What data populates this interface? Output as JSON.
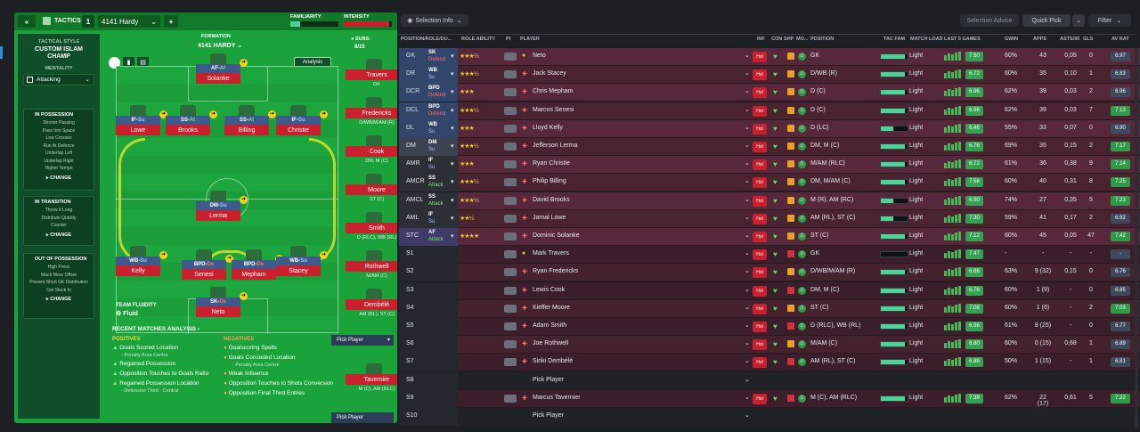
{
  "left": {
    "collapse": "«",
    "tactics_label": "TACTICS",
    "slot": "1",
    "formation_select": "4141 Hardy",
    "add": "+",
    "familiarity": "FAMILIARITY",
    "intensity": "INTENSITY",
    "formation_label": "FORMATION",
    "formation_value": "4141 HARDY",
    "subs_label": "SUBS:",
    "subs_value": "8/15",
    "analysis": "Analysis",
    "style_label": "TACTICAL STYLE",
    "style_value": "CUSTOM ISLAM CHAMP",
    "mentality_label": "MENTALITY",
    "mentality_value": "Attacking",
    "in_possession": {
      "title": "IN POSSESSION",
      "items": [
        "Shorter Passing",
        "Pass Into Space",
        "Low Crosses",
        "Run At Defence",
        "Underlap Left",
        "Underlap Right",
        "Higher Tempo"
      ],
      "change": "CHANGE"
    },
    "in_transition": {
      "title": "IN TRANSITION",
      "items": [
        "Throw It Long",
        "Distribute Quickly",
        "Counter"
      ],
      "change": "CHANGE"
    },
    "out_of_possession": {
      "title": "OUT OF POSSESSION",
      "items": [
        "High Press",
        "Much More Offset",
        "Prevent Short GK Distribution",
        "Get Stuck In"
      ],
      "change": "CHANGE"
    },
    "fluidity_label": "TEAM FLUIDITY",
    "fluidity_value": "Fluid",
    "players": [
      {
        "role": "AF",
        "duty": "At",
        "name": "Solanke"
      },
      {
        "role": "IF",
        "duty": "Su",
        "name": "Lowe"
      },
      {
        "role": "SS",
        "duty": "At",
        "name": "Brooks"
      },
      {
        "role": "SS",
        "duty": "At",
        "name": "Billing"
      },
      {
        "role": "IF",
        "duty": "Su",
        "name": "Christie"
      },
      {
        "role": "DM",
        "duty": "Su",
        "name": "Lerma"
      },
      {
        "role": "WB",
        "duty": "Su",
        "name": "Kelly"
      },
      {
        "role": "BPD",
        "duty": "De",
        "name": "Senesi"
      },
      {
        "role": "BPD",
        "duty": "De",
        "name": "Mepham"
      },
      {
        "role": "WB",
        "duty": "Su",
        "name": "Stacey"
      },
      {
        "role": "SK",
        "duty": "De",
        "name": "Neto"
      }
    ],
    "subs": [
      {
        "name": "Travers",
        "pos": "GK"
      },
      {
        "name": "Fredericks",
        "pos": "D/WB/M/AM (R)"
      },
      {
        "name": "Cook",
        "pos": "DM, M (C)"
      },
      {
        "name": "Moore",
        "pos": "ST (C)"
      },
      {
        "name": "Smith",
        "pos": "D (RLC), WB (RL)"
      },
      {
        "name": "Rothwell",
        "pos": "M/AM (C)"
      },
      {
        "name": "Dembélé",
        "pos": "AM (RL), ST (C)"
      },
      {
        "name": "Tavernier",
        "pos": "M (C), AM (RLC)"
      }
    ],
    "pick_player": "Pick Player",
    "pick_player_bottom": "Pick Player",
    "recent": "RECENT MATCHES ANALYSIS",
    "positives_label": "POSITIVES",
    "positives": [
      {
        "t": "Goals Scored Location",
        "s": "- Penalty Area Centre"
      },
      {
        "t": "Regained Possession",
        "s": ""
      },
      {
        "t": "Opposition Touches to Goals Ratio",
        "s": ""
      },
      {
        "t": "Regained Possession Location",
        "s": "- Defensive Third - Central"
      }
    ],
    "negatives_label": "NEGATIVES",
    "negatives": [
      {
        "t": "Goalscoring Spells",
        "s": ""
      },
      {
        "t": "Goals Conceded Location",
        "s": "- Penalty Area Centre"
      },
      {
        "t": "Weak Influence",
        "s": ""
      },
      {
        "t": "Opposition Touches to Shots Conversion",
        "s": ""
      },
      {
        "t": "Opposition Final Third Entries",
        "s": ""
      }
    ]
  },
  "right": {
    "selection_info": "Selection Info",
    "selection_advice": "Selection Advice",
    "quick_pick": "Quick Pick",
    "filter": "Filter",
    "headers": [
      "POSITION/ROLE/DU...",
      "ROLE ABILITY",
      "PI",
      "PLAYER",
      "INF",
      "CON",
      "SHP",
      "MO...",
      "POSITION",
      "TAC FAM",
      "MATCH LOAD",
      "LAST 5 GAMES",
      "GWIN",
      "APPS",
      "ASTS/90",
      "GLS",
      "AV RAT"
    ],
    "rows": [
      {
        "pos": "GK",
        "role": "SK",
        "duty": "Defend",
        "stars": "★★★½",
        "name": "Neto",
        "position": "GK",
        "load": "Light",
        "gwin": "60%",
        "apps": "43",
        "asts": "0,05",
        "gls": "0",
        "av": "6.97",
        "rat": "7.50"
      },
      {
        "pos": "DR",
        "role": "WB",
        "duty": "Su",
        "stars": "★★★½",
        "name": "Jack Stacey",
        "position": "D/WB (R)",
        "load": "Light",
        "gwin": "60%",
        "apps": "35",
        "asts": "0,10",
        "gls": "1",
        "av": "6.83",
        "rat": "6.72"
      },
      {
        "pos": "DCR",
        "role": "BPD",
        "duty": "Defend",
        "stars": "★★★",
        "name": "Chris Mepham",
        "position": "D (C)",
        "load": "Light",
        "gwin": "62%",
        "apps": "39",
        "asts": "0,03",
        "gls": "2",
        "av": "6.96",
        "rat": "6.96"
      },
      {
        "pos": "DCL",
        "role": "BPD",
        "duty": "Defend",
        "stars": "★★★½",
        "name": "Marcos Senesi",
        "position": "D (C)",
        "load": "Light",
        "gwin": "62%",
        "apps": "39",
        "asts": "0,03",
        "gls": "7",
        "av": "7.13",
        "rat": "6.96"
      },
      {
        "pos": "DL",
        "role": "WB",
        "duty": "Su",
        "stars": "★★★",
        "name": "Lloyd Kelly",
        "position": "D (LC)",
        "load": "Light",
        "gwin": "55%",
        "apps": "33",
        "asts": "0,07",
        "gls": "0",
        "av": "6.90",
        "rat": "6.46"
      },
      {
        "pos": "DM",
        "role": "DM",
        "duty": "Su",
        "stars": "★★★½",
        "name": "Jefferson Lerma",
        "position": "DM, M (C)",
        "load": "Light",
        "gwin": "69%",
        "apps": "35",
        "asts": "0,15",
        "gls": "2",
        "av": "7.17",
        "rat": "6.76"
      },
      {
        "pos": "AMR",
        "role": "IF",
        "duty": "Su",
        "stars": "★★★",
        "name": "Ryan Christie",
        "position": "M/AM (RLC)",
        "load": "Light",
        "gwin": "61%",
        "apps": "36",
        "asts": "0,38",
        "gls": "9",
        "av": "7.14",
        "rat": "6.72"
      },
      {
        "pos": "AMCR",
        "role": "SS",
        "duty": "Attack",
        "stars": "★★★½",
        "name": "Philip Billing",
        "position": "DM, M/AM (C)",
        "load": "Light",
        "gwin": "60%",
        "apps": "40",
        "asts": "0,31",
        "gls": "8",
        "av": "7.25",
        "rat": "7.58"
      },
      {
        "pos": "AMCL",
        "role": "SS",
        "duty": "Attack",
        "stars": "★★★½",
        "name": "David Brooks",
        "position": "M (R), AM (RC)",
        "load": "Light",
        "gwin": "74%",
        "apps": "27",
        "asts": "0,35",
        "gls": "5",
        "av": "7.23",
        "rat": "6.90"
      },
      {
        "pos": "AML",
        "role": "IF",
        "duty": "Su",
        "stars": "★★½",
        "name": "Jamal Lowe",
        "position": "AM (RL), ST (C)",
        "load": "Light",
        "gwin": "59%",
        "apps": "41",
        "asts": "0,17",
        "gls": "2",
        "av": "6.92",
        "rat": "7.30"
      },
      {
        "pos": "STC",
        "role": "AF",
        "duty": "Attack",
        "stars": "★★★★",
        "name": "Dominic Solanke",
        "position": "ST (C)",
        "load": "Light",
        "gwin": "60%",
        "apps": "45",
        "asts": "0,05",
        "gls": "47",
        "av": "7.42",
        "rat": "7.12"
      },
      {
        "pos": "S1",
        "role": "",
        "duty": "",
        "stars": "",
        "name": "Mark Travers",
        "position": "GK",
        "load": "Light",
        "gwin": "-",
        "apps": "-",
        "asts": "-",
        "gls": "-",
        "av": "-",
        "rat": "7.47"
      },
      {
        "pos": "S2",
        "role": "",
        "duty": "",
        "stars": "",
        "name": "Ryan Fredericks",
        "position": "D/WB/M/AM (R)",
        "load": "Light",
        "gwin": "63%",
        "apps": "9 (32)",
        "asts": "0,15",
        "gls": "0",
        "av": "6.76",
        "rat": "6.88"
      },
      {
        "pos": "S3",
        "role": "",
        "duty": "",
        "stars": "",
        "name": "Lewis Cook",
        "position": "DM, M (C)",
        "load": "Light",
        "gwin": "60%",
        "apps": "1 (9)",
        "asts": "-",
        "gls": "0",
        "av": "6.85",
        "rat": "6.76"
      },
      {
        "pos": "S4",
        "role": "",
        "duty": "",
        "stars": "",
        "name": "Kieffer Moore",
        "position": "ST (C)",
        "load": "Light",
        "gwin": "60%",
        "apps": "1 (6)",
        "asts": "-",
        "gls": "2",
        "av": "7.03",
        "rat": "7.08"
      },
      {
        "pos": "S5",
        "role": "",
        "duty": "",
        "stars": "",
        "name": "Adam Smith",
        "position": "D (RLC), WB (RL)",
        "load": "Light",
        "gwin": "61%",
        "apps": "8 (25)",
        "asts": "-",
        "gls": "0",
        "av": "6.77",
        "rat": "6.56"
      },
      {
        "pos": "S6",
        "role": "",
        "duty": "",
        "stars": "",
        "name": "Joe Rothwell",
        "position": "M/AM (C)",
        "load": "Light",
        "gwin": "60%",
        "apps": "0 (15)",
        "asts": "0,68",
        "gls": "1",
        "av": "6.89",
        "rat": "6.80"
      },
      {
        "pos": "S7",
        "role": "",
        "duty": "",
        "stars": "",
        "name": "Siriki Dembélé",
        "position": "AM (RL), ST (C)",
        "load": "Light",
        "gwin": "50%",
        "apps": "1 (15)",
        "asts": "-",
        "gls": "1",
        "av": "6.81",
        "rat": "6.88"
      },
      {
        "pos": "S8",
        "role": "",
        "duty": "",
        "stars": "",
        "name": "Pick Player",
        "position": "",
        "load": "",
        "gwin": "",
        "apps": "",
        "asts": "",
        "gls": "",
        "av": "",
        "rat": ""
      },
      {
        "pos": "S9",
        "role": "",
        "duty": "",
        "stars": "",
        "name": "Marcus Tavernier",
        "position": "M (C), AM (RLC)",
        "load": "Light",
        "gwin": "62%",
        "apps": "22 (17)",
        "asts": "0,61",
        "gls": "5",
        "av": "7.22",
        "rat": "7.39"
      },
      {
        "pos": "S10",
        "role": "",
        "duty": "",
        "stars": "",
        "name": "Pick Player",
        "position": "",
        "load": "",
        "gwin": "",
        "apps": "",
        "asts": "",
        "gls": "",
        "av": "",
        "rat": ""
      }
    ],
    "tac_fam": [
      0.9,
      0.9,
      0.9,
      0.9,
      0.45,
      0.9,
      0.9,
      0.9,
      0.45,
      0.45,
      0.9,
      0,
      0.9,
      0.9,
      0.9,
      0.9,
      0.9,
      0.9,
      0,
      0.9,
      0
    ]
  }
}
